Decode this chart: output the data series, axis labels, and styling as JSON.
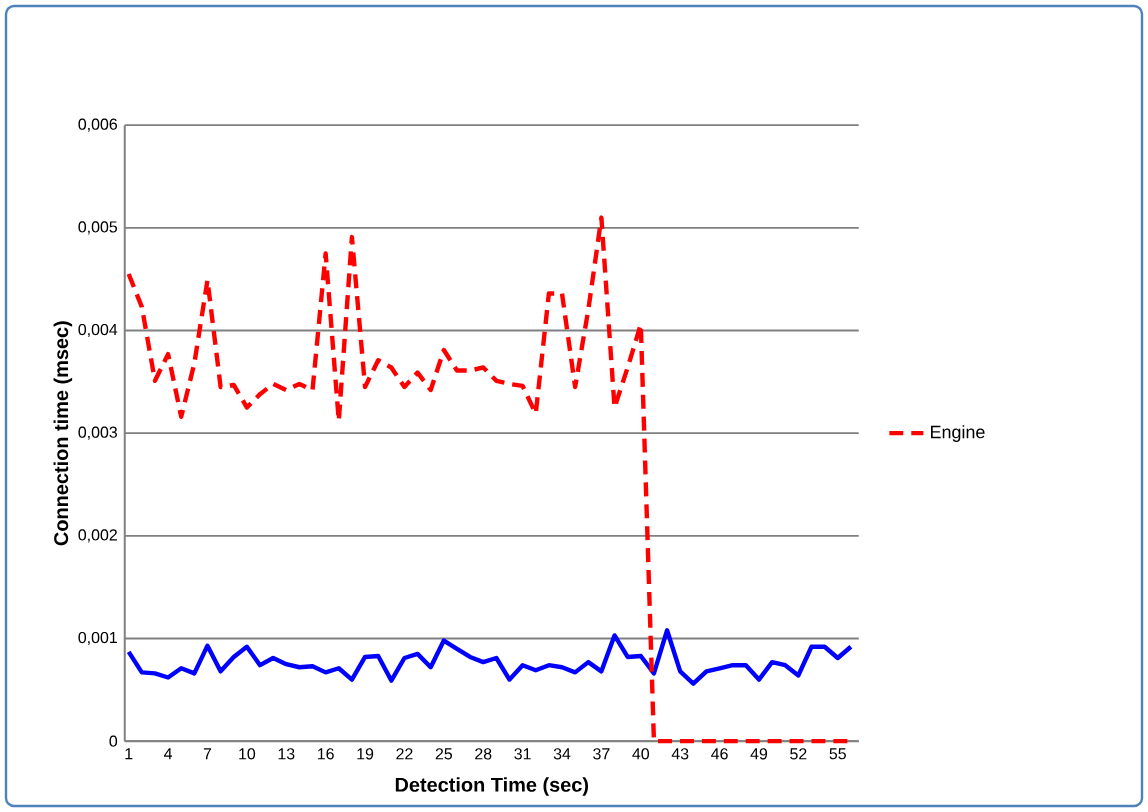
{
  "chart_data": {
    "type": "line",
    "xlabel": "Detection Time (sec)",
    "ylabel": "Connection time (msec)",
    "categories": [
      "1",
      null,
      null,
      "4",
      null,
      null,
      "7",
      null,
      null,
      "10",
      null,
      null,
      "13",
      null,
      null,
      "16",
      null,
      null,
      "19",
      null,
      null,
      "22",
      null,
      null,
      "25",
      null,
      null,
      "28",
      null,
      null,
      "31",
      null,
      null,
      "34",
      null,
      null,
      "37",
      null,
      null,
      "40",
      null,
      null,
      "43",
      null,
      null,
      "46",
      null,
      null,
      "49",
      null,
      null,
      "52",
      null,
      null,
      "55",
      null
    ],
    "ylim": [
      0,
      0.006
    ],
    "yticks": [
      {
        "value": 0,
        "label": "0"
      },
      {
        "value": 0.001,
        "label": "0,001"
      },
      {
        "value": 0.002,
        "label": "0,002"
      },
      {
        "value": 0.003,
        "label": "0,003"
      },
      {
        "value": 0.004,
        "label": "0,004"
      },
      {
        "value": 0.005,
        "label": "0,005"
      },
      {
        "value": 0.006,
        "label": "0,006"
      }
    ],
    "grid": "y",
    "legend": "right",
    "series": [
      {
        "color": "#0000ff",
        "line_style": "solid",
        "values": [
          0.00087,
          0.00067,
          0.00066,
          0.00062,
          0.00071,
          0.00066,
          0.00093,
          0.00068,
          0.00082,
          0.00092,
          0.00074,
          0.00081,
          0.00075,
          0.00072,
          0.00073,
          0.00067,
          0.00071,
          0.0006,
          0.00082,
          0.00083,
          0.00059,
          0.00081,
          0.00085,
          0.00072,
          0.00098,
          0.0009,
          0.00082,
          0.00077,
          0.00081,
          0.0006,
          0.00074,
          0.00069,
          0.00074,
          0.00072,
          0.00067,
          0.00077,
          0.00068,
          0.00103,
          0.00082,
          0.00083,
          0.00066,
          0.00108,
          0.00068,
          0.00056,
          0.00068,
          0.00071,
          0.00074,
          0.00074,
          0.0006,
          0.00077,
          0.00074,
          0.00064,
          0.00092,
          0.00092,
          0.00081,
          0.00092
        ]
      },
      {
        "name": "Engine",
        "color": "#ff0000",
        "line_style": "dashed",
        "values": [
          0.00455,
          0.00423,
          0.00351,
          0.00377,
          0.00316,
          0.00368,
          0.00449,
          0.00345,
          0.00347,
          0.00325,
          0.00338,
          0.00348,
          0.00342,
          0.00348,
          0.00342,
          0.00475,
          0.00312,
          0.00491,
          0.00345,
          0.00371,
          0.00364,
          0.00345,
          0.00359,
          0.00342,
          0.00381,
          0.00361,
          0.00361,
          0.00364,
          0.00351,
          0.00348,
          0.00346,
          0.00319,
          0.00436,
          0.00436,
          0.00345,
          0.0042,
          0.0051,
          0.00325,
          0.00364,
          0.00406,
          0,
          0,
          0,
          0,
          0,
          0,
          0,
          0,
          0,
          0,
          0,
          0,
          0,
          0,
          0,
          0
        ]
      }
    ]
  }
}
